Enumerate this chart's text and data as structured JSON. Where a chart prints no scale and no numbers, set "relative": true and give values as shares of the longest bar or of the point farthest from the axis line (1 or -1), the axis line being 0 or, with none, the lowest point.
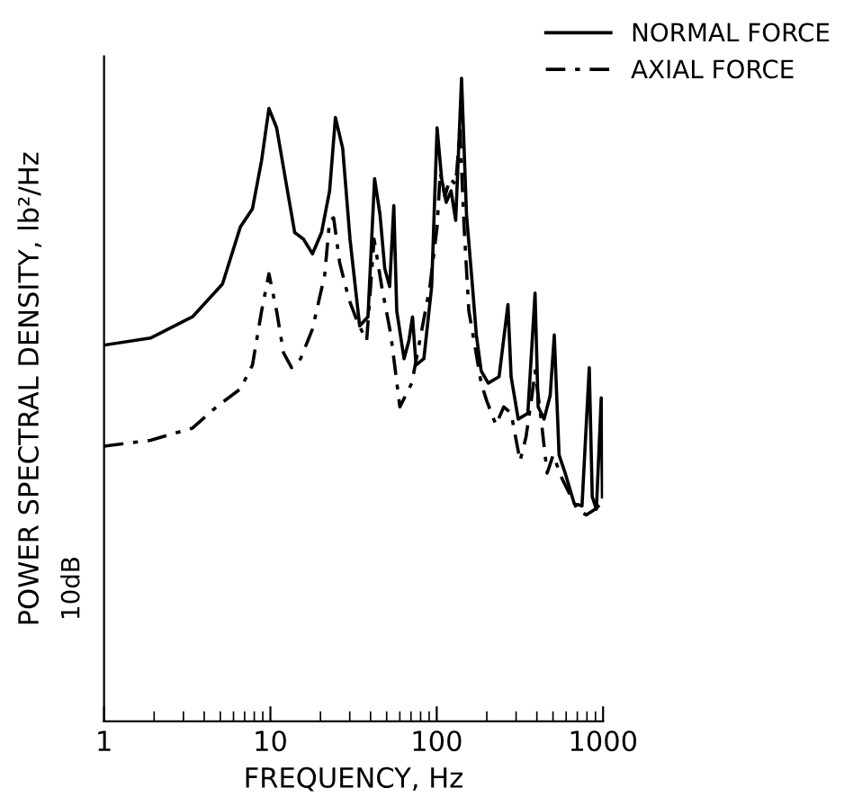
{
  "chart_data": {
    "type": "line",
    "xlabel": "FREQUENCY, Hz",
    "ylabel": "POWER SPECTRAL DENSITY, lb²/Hz",
    "relative": true,
    "log": "x",
    "xlim": [
      1,
      1000
    ],
    "xticks": [
      1,
      10,
      100,
      1000
    ],
    "legend": "top right",
    "grid": false,
    "annotations": [
      "10dB"
    ],
    "series": [
      {
        "name": "NORMAL FORCE",
        "color": "#000000",
        "line_style": "solid",
        "x": [
          1,
          1.9,
          3.4,
          5.15,
          6.6,
          7.8,
          8.85,
          9.8,
          10.9,
          12.3,
          14.0,
          15.8,
          17.9,
          20.3,
          22.7,
          24.6,
          27.2,
          30.1,
          34.4,
          38.6,
          42.3,
          45.6,
          48.7,
          52.1,
          55.2,
          57.5,
          63.6,
          68,
          71.5,
          75.1,
          83.7,
          93.2,
          100.5,
          107,
          114,
          122,
          130,
          141,
          151,
          163,
          173,
          185,
          204,
          237,
          268,
          280,
          309,
          353,
          390,
          407,
          442,
          481,
          509,
          544,
          592,
          670,
          747,
          826,
          861,
          912,
          975,
          991
        ],
        "values": [
          0.585,
          0.596,
          0.629,
          0.68,
          0.769,
          0.797,
          0.872,
          0.953,
          0.923,
          0.844,
          0.76,
          0.75,
          0.727,
          0.76,
          0.825,
          0.939,
          0.891,
          0.75,
          0.615,
          0.629,
          0.844,
          0.788,
          0.704,
          0.676,
          0.802,
          0.638,
          0.564,
          0.592,
          0.629,
          0.554,
          0.564,
          0.676,
          0.923,
          0.844,
          0.807,
          0.825,
          0.779,
          1.0,
          0.788,
          0.685,
          0.601,
          0.545,
          0.526,
          0.536,
          0.648,
          0.536,
          0.47,
          0.479,
          0.666,
          0.489,
          0.47,
          0.507,
          0.601,
          0.414,
          0.386,
          0.339,
          0.335,
          0.55,
          0.349,
          0.33,
          0.503,
          0.349
        ]
      },
      {
        "name": "AXIAL FORCE",
        "color": "#000000",
        "line_style": "dashed",
        "x": [
          1,
          1.9,
          3.4,
          4.74,
          6.6,
          7.8,
          8.85,
          9.8,
          10.9,
          12.0,
          13.4,
          15.2,
          17.9,
          21.2,
          22.7,
          24.0,
          26.1,
          29.6,
          33.5,
          37.9,
          42.0,
          46.7,
          53.0,
          60.0,
          70.8,
          80.3,
          91.0,
          100.5,
          105,
          112,
          120,
          130,
          138,
          146,
          156,
          170,
          185,
          200,
          227,
          253,
          280,
          317,
          344,
          374,
          390,
          424,
          461,
          501,
          568,
          643,
          698,
          791,
          897,
          975
        ],
        "values": [
          0.428,
          0.437,
          0.456,
          0.489,
          0.517,
          0.554,
          0.638,
          0.696,
          0.638,
          0.573,
          0.55,
          0.564,
          0.61,
          0.694,
          0.779,
          0.783,
          0.713,
          0.657,
          0.62,
          0.592,
          0.75,
          0.676,
          0.601,
          0.489,
          0.526,
          0.601,
          0.676,
          0.769,
          0.853,
          0.816,
          0.844,
          0.835,
          0.919,
          0.769,
          0.638,
          0.582,
          0.526,
          0.498,
          0.461,
          0.489,
          0.479,
          0.405,
          0.442,
          0.507,
          0.545,
          0.47,
          0.386,
          0.414,
          0.377,
          0.349,
          0.33,
          0.321,
          0.33,
          0.339
        ]
      }
    ]
  }
}
